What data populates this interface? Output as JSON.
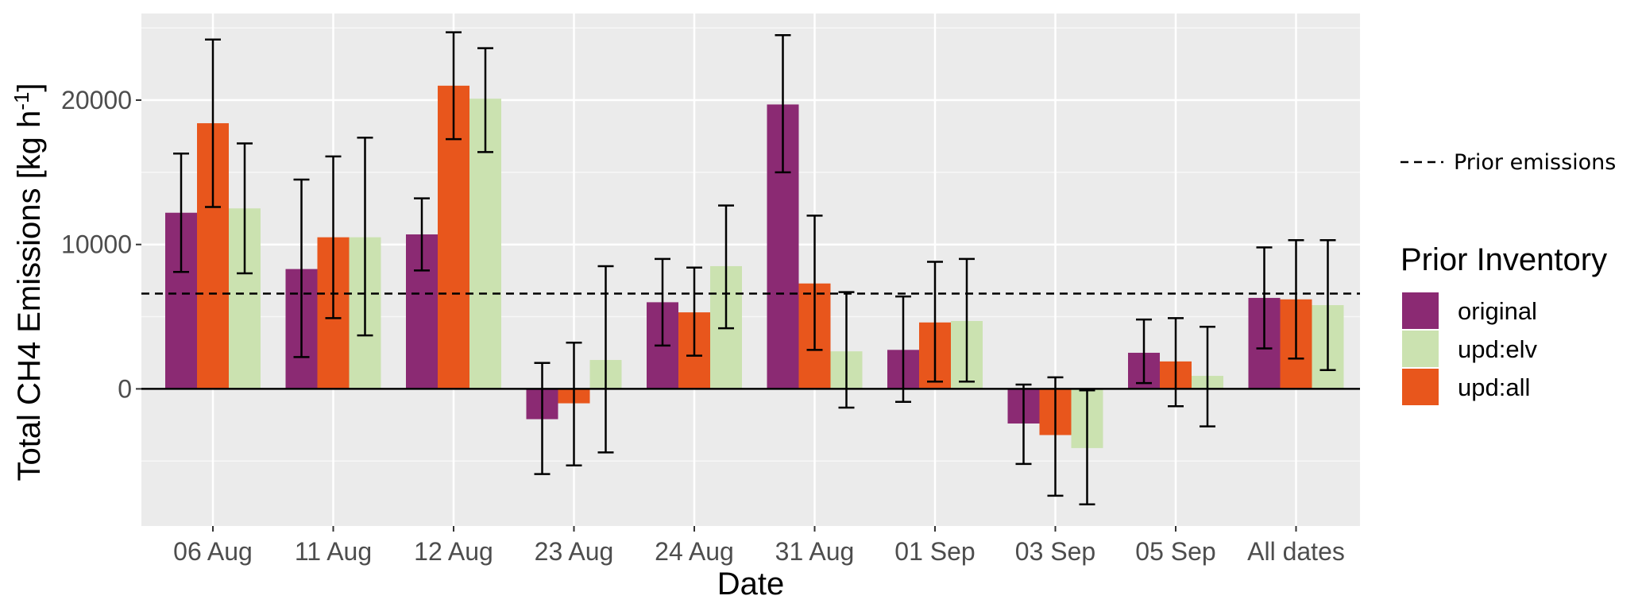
{
  "chart_data": {
    "type": "bar",
    "xlabel": "Date",
    "ylabel": "Total CH4 Emissions  [kg h",
    "ylabel_superscript": "-1",
    "ylabel_close": "]",
    "categories": [
      "06 Aug",
      "11 Aug",
      "12 Aug",
      "23 Aug",
      "24 Aug",
      "31 Aug",
      "01 Sep",
      "03 Sep",
      "05 Sep",
      "All dates"
    ],
    "ylim": [
      -9500,
      26000
    ],
    "yticks": [
      0,
      10000,
      20000
    ],
    "ytick_labels": [
      "0",
      "10000",
      "20000"
    ],
    "grid": true,
    "legend_position": "right",
    "legend_title": "Prior Inventory",
    "legend_order": [
      "original",
      "upd:elv",
      "upd:all"
    ],
    "series": [
      {
        "name": "original",
        "color": "#8B2A73",
        "values": [
          12200,
          8300,
          10700,
          -2100,
          6000,
          19700,
          2700,
          -2400,
          2500,
          6300
        ],
        "err_low": [
          8100,
          2200,
          8200,
          -5900,
          3000,
          15000,
          -900,
          -5200,
          400,
          2800
        ],
        "err_high": [
          16300,
          14500,
          13200,
          1800,
          9000,
          24500,
          6400,
          300,
          4800,
          9800
        ]
      },
      {
        "name": "upd:all",
        "color": "#E8561C",
        "values": [
          18400,
          10500,
          21000,
          -1000,
          5300,
          7300,
          4600,
          -3200,
          1900,
          6200
        ],
        "err_low": [
          12600,
          4900,
          17300,
          -5300,
          2300,
          2700,
          500,
          -7400,
          -1200,
          2100
        ],
        "err_high": [
          24200,
          16100,
          24700,
          3200,
          8400,
          12000,
          8800,
          800,
          4900,
          10300
        ]
      },
      {
        "name": "upd:elv",
        "color": "#CBE2B0",
        "values": [
          12500,
          10500,
          20100,
          2000,
          8500,
          2600,
          4700,
          -4100,
          900,
          5800
        ],
        "err_low": [
          8000,
          3700,
          16400,
          -4400,
          4200,
          -1300,
          500,
          -8000,
          -2600,
          1300
        ],
        "err_high": [
          17000,
          17400,
          23600,
          8500,
          12700,
          6700,
          9000,
          -100,
          4300,
          10300
        ]
      }
    ],
    "reference_line": {
      "label": "Prior emissions",
      "value": 6600,
      "style": "dashed"
    }
  }
}
